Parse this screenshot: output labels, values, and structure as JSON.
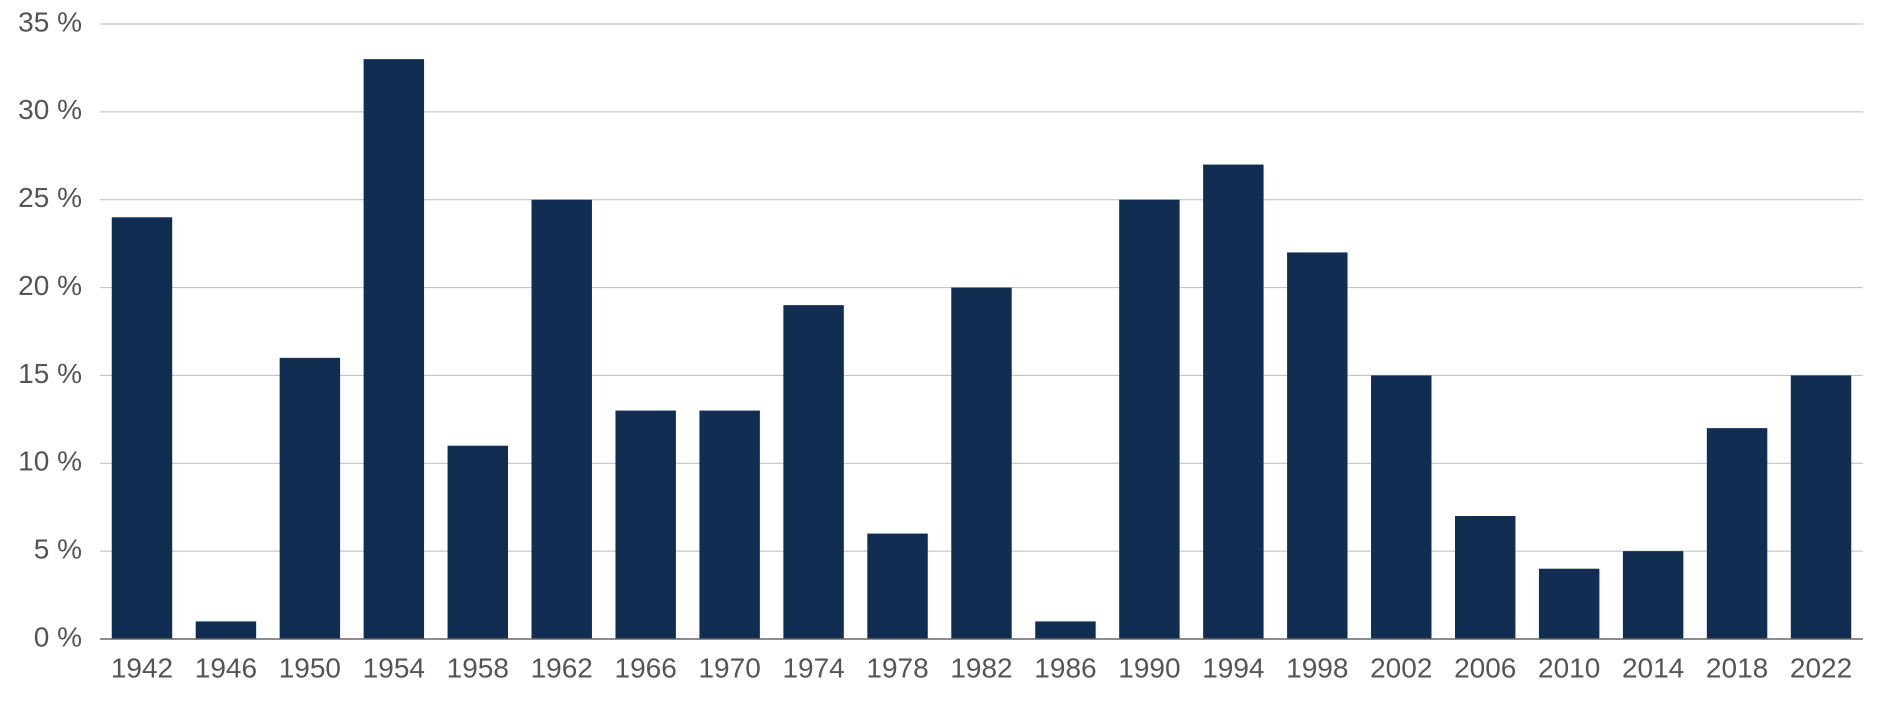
{
  "chart_data": {
    "type": "bar",
    "categories": [
      "1942",
      "1946",
      "1950",
      "1954",
      "1958",
      "1962",
      "1966",
      "1970",
      "1974",
      "1978",
      "1982",
      "1986",
      "1990",
      "1994",
      "1998",
      "2002",
      "2006",
      "2010",
      "2014",
      "2018",
      "2022"
    ],
    "values": [
      24,
      1,
      16,
      33,
      11,
      25,
      13,
      13,
      19,
      6,
      20,
      1,
      25,
      27,
      22,
      15,
      7,
      4,
      5,
      12,
      15
    ],
    "color": "#112d52",
    "ylim": [
      0,
      35
    ],
    "yticks": [
      {
        "value": 0,
        "label": "0 %"
      },
      {
        "value": 5,
        "label": "5 %"
      },
      {
        "value": 10,
        "label": "10 %"
      },
      {
        "value": 15,
        "label": "15 %"
      },
      {
        "value": 20,
        "label": "20 %"
      },
      {
        "value": 25,
        "label": "25 %"
      },
      {
        "value": 30,
        "label": "30 %"
      },
      {
        "value": 35,
        "label": "35 %"
      }
    ],
    "grid": true
  }
}
